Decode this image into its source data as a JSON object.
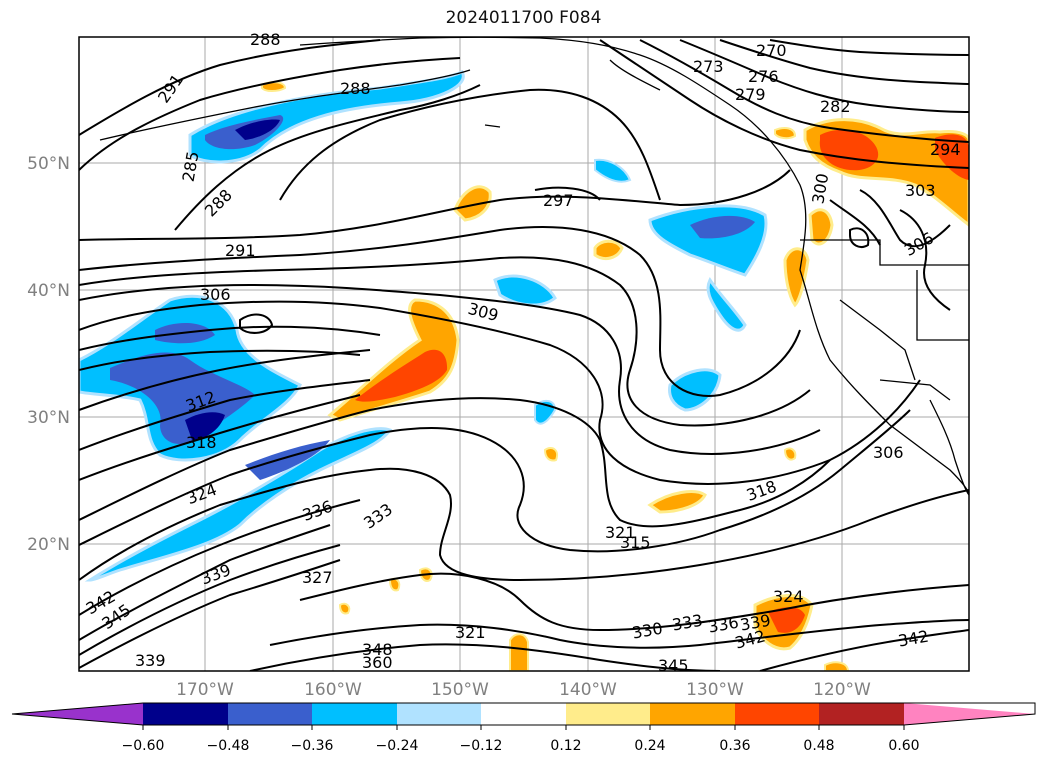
{
  "title": "2024011700 F084",
  "map": {
    "projection": "lat-lon",
    "lat_ticks": [
      "50°N",
      "40°N",
      "30°N",
      "20°N"
    ],
    "lon_ticks": [
      "170°W",
      "160°W",
      "150°W",
      "140°W",
      "130°W",
      "120°W"
    ],
    "contour_labels": [
      "270",
      "273",
      "276",
      "279",
      "282",
      "285",
      "288",
      "288",
      "288",
      "291",
      "291",
      "294",
      "297",
      "300",
      "303",
      "306",
      "306",
      "306",
      "309",
      "312",
      "315",
      "318",
      "318",
      "321",
      "321",
      "324",
      "324",
      "327",
      "330",
      "333",
      "333",
      "336",
      "336",
      "339",
      "339",
      "339",
      "342",
      "342",
      "342",
      "345",
      "345",
      "348",
      "360"
    ]
  },
  "colorbar": {
    "ticks": [
      "−0.60",
      "−0.48",
      "−0.36",
      "−0.24",
      "−0.12",
      "0.12",
      "0.24",
      "0.36",
      "0.48",
      "0.60"
    ],
    "colors": [
      "#9932cc",
      "#00008b",
      "#3a5fcd",
      "#00bfff",
      "#b0e2ff",
      "#ffffff",
      "#ffec8b",
      "#ffa500",
      "#ff4500",
      "#b22222",
      "#ff83c0"
    ]
  }
}
